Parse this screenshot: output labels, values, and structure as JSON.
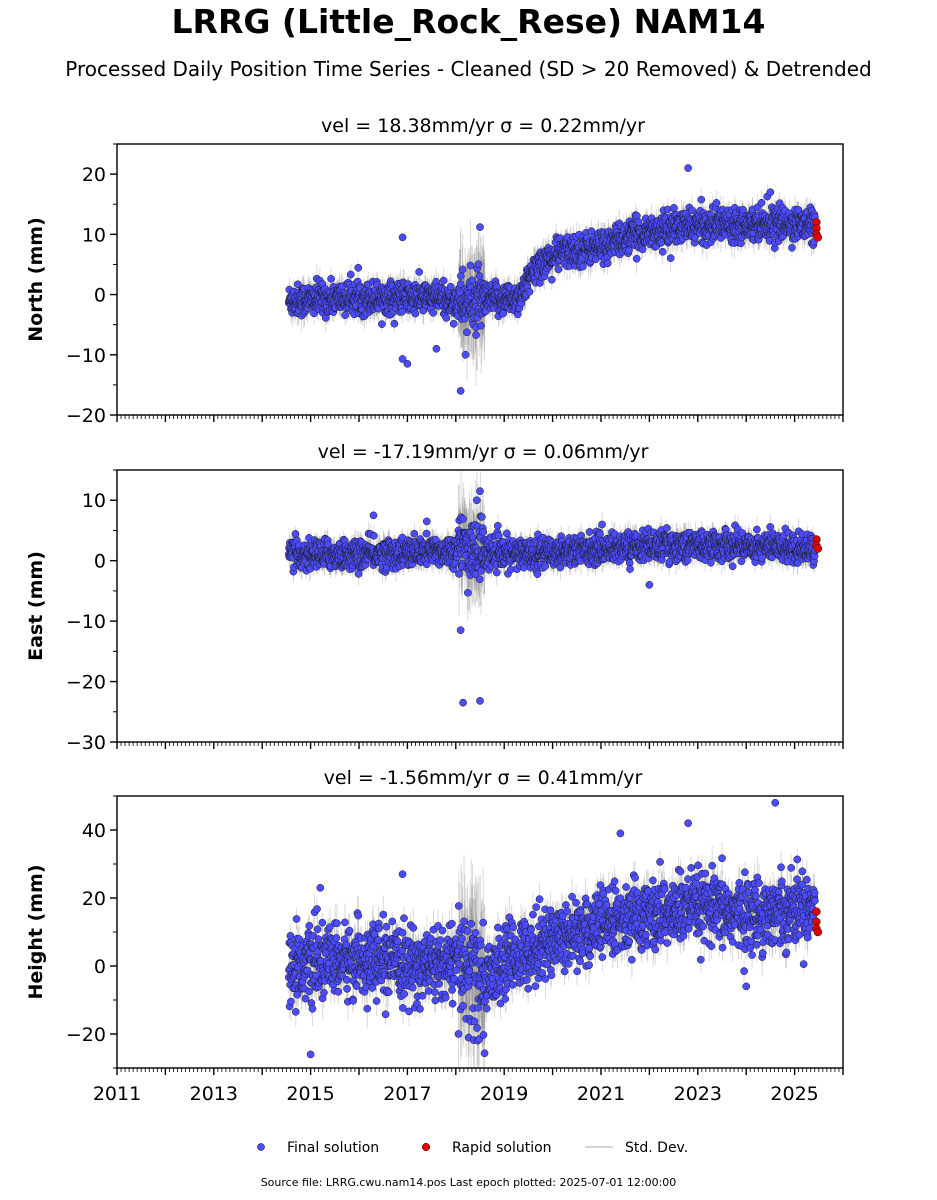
{
  "title": "LRRG (Little_Rock_Rese) NAM14",
  "subtitle": "Processed Daily Position Time Series - Cleaned (SD > 20 Removed) & Detrended",
  "footer": "Source file: LRRG.cwu.nam14.pos  Last epoch plotted: 2025-07-01 12:00:00",
  "colors": {
    "final": "#4b4bff",
    "rapid": "#e00000",
    "stddev": "#c8c8c8"
  },
  "chart_data": [
    {
      "type": "scatter",
      "title": "vel = 18.38mm/yr   σ = 0.22mm/yr",
      "ylabel": "North (mm)",
      "xlim": [
        2011,
        2026
      ],
      "ylim": [
        -20,
        25
      ],
      "yticks": [
        -20,
        -10,
        0,
        10,
        20
      ],
      "ytick_labels": [
        "−20",
        "−10",
        "0",
        "10",
        "20"
      ],
      "approx_series_trend": [
        [
          2014.55,
          -1.0
        ],
        [
          2016.0,
          -0.5
        ],
        [
          2017.5,
          -0.5
        ],
        [
          2018.2,
          -1.5
        ],
        [
          2019.3,
          -0.5
        ],
        [
          2019.7,
          5.0
        ],
        [
          2020.2,
          7.0
        ],
        [
          2021.0,
          8.0
        ],
        [
          2022.0,
          10.5
        ],
        [
          2023.0,
          11.5
        ],
        [
          2024.0,
          12.0
        ],
        [
          2025.45,
          11.5
        ]
      ],
      "series": [
        {
          "name": "Final solution",
          "approx_points": [
            [
              2016.9,
              9.5
            ],
            [
              2016.9,
              -10.7
            ],
            [
              2017.0,
              -11.5
            ],
            [
              2018.1,
              -16.0
            ],
            [
              2018.5,
              11.2
            ],
            [
              2022.8,
              21.0
            ],
            [
              2024.5,
              17.0
            ],
            [
              2017.6,
              -9.0
            ],
            [
              2018.2,
              -10.0
            ]
          ]
        },
        {
          "name": "Rapid solution",
          "approx_points": [
            [
              2025.45,
              12.0
            ],
            [
              2025.45,
              11.0
            ],
            [
              2025.45,
              10.0
            ],
            [
              2025.48,
              9.5
            ]
          ]
        }
      ]
    },
    {
      "type": "scatter",
      "title": "vel = -17.19mm/yr   σ = 0.06mm/yr",
      "ylabel": "East (mm)",
      "xlim": [
        2011,
        2026
      ],
      "ylim": [
        -30,
        15
      ],
      "yticks": [
        -30,
        -20,
        -10,
        0,
        10
      ],
      "ytick_labels": [
        "−30",
        "−20",
        "−10",
        "0",
        "10"
      ],
      "approx_series_trend": [
        [
          2014.55,
          1.0
        ],
        [
          2016.0,
          1.0
        ],
        [
          2017.5,
          1.5
        ],
        [
          2018.3,
          2.0
        ],
        [
          2019.0,
          1.0
        ],
        [
          2020.0,
          1.5
        ],
        [
          2021.0,
          2.0
        ],
        [
          2022.0,
          2.5
        ],
        [
          2023.0,
          2.5
        ],
        [
          2024.0,
          2.5
        ],
        [
          2025.45,
          2.0
        ]
      ],
      "series": [
        {
          "name": "Final solution",
          "approx_points": [
            [
              2018.15,
              -23.5
            ],
            [
              2018.5,
              -23.2
            ],
            [
              2018.1,
              -11.5
            ],
            [
              2018.5,
              11.5
            ],
            [
              2016.3,
              7.5
            ],
            [
              2017.4,
              6.5
            ],
            [
              2022.0,
              -4.0
            ]
          ]
        },
        {
          "name": "Rapid solution",
          "approx_points": [
            [
              2025.45,
              3.5
            ],
            [
              2025.45,
              2.5
            ],
            [
              2025.48,
              2.0
            ]
          ]
        }
      ]
    },
    {
      "type": "scatter",
      "title": "vel = -1.56mm/yr   σ = 0.41mm/yr",
      "ylabel": "Height (mm)",
      "xlim": [
        2011,
        2026
      ],
      "ylim": [
        -30,
        50
      ],
      "yticks": [
        -20,
        0,
        20,
        40
      ],
      "ytick_labels": [
        "−20",
        "0",
        "20",
        "40"
      ],
      "approx_series_trend": [
        [
          2014.55,
          0
        ],
        [
          2016.0,
          2.0
        ],
        [
          2017.0,
          0
        ],
        [
          2018.0,
          1.0
        ],
        [
          2018.5,
          -5.0
        ],
        [
          2019.2,
          3.0
        ],
        [
          2020.0,
          8.0
        ],
        [
          2021.0,
          12.0
        ],
        [
          2022.0,
          15.0
        ],
        [
          2023.0,
          17.0
        ],
        [
          2024.0,
          15.0
        ],
        [
          2025.45,
          18.0
        ]
      ],
      "series": [
        {
          "name": "Final solution",
          "approx_points": [
            [
              2024.6,
              48.0
            ],
            [
              2021.4,
              39.0
            ],
            [
              2022.8,
              42.0
            ],
            [
              2015.0,
              -26.0
            ],
            [
              2016.9,
              27.0
            ],
            [
              2015.2,
              23.0
            ],
            [
              2024.0,
              -6.0
            ]
          ]
        },
        {
          "name": "Rapid solution",
          "approx_points": [
            [
              2025.45,
              16.0
            ],
            [
              2025.45,
              13.0
            ],
            [
              2025.45,
              11.0
            ],
            [
              2025.48,
              10.0
            ]
          ]
        }
      ]
    }
  ],
  "xaxis": {
    "major_ticks": [
      2011,
      2013,
      2015,
      2017,
      2019,
      2021,
      2023,
      2025
    ],
    "labels": [
      "2011",
      "2013",
      "2015",
      "2017",
      "2019",
      "2021",
      "2023",
      "2025"
    ]
  },
  "legend": {
    "items": [
      "Final solution",
      "Rapid solution",
      "Std. Dev."
    ]
  }
}
